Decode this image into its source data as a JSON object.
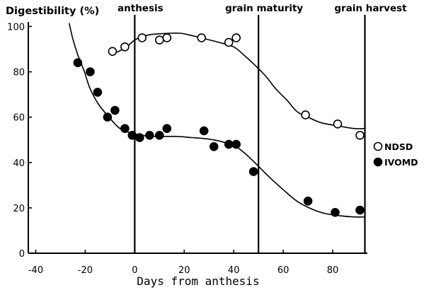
{
  "chart_data": {
    "type": "scatter",
    "ylabel": "Digestibility (%)",
    "xlabel": "Days from anthesis",
    "xlim": [
      -43,
      94
    ],
    "ylim": [
      0,
      102
    ],
    "xticks": [
      -40,
      -20,
      0,
      20,
      40,
      60,
      80
    ],
    "yticks": [
      0,
      20,
      40,
      60,
      80,
      100
    ],
    "grid": false,
    "legend": "right",
    "annotations": [
      {
        "label": "anthesis",
        "x": 0
      },
      {
        "label": "grain maturity",
        "x": 50
      },
      {
        "label": "grain harvest",
        "x": 93
      }
    ],
    "series": [
      {
        "name": "NDSD",
        "color": "#000000",
        "marker_fill": "#ffffff",
        "points": [
          [
            -9,
            89
          ],
          [
            -4,
            91
          ],
          [
            3,
            95
          ],
          [
            10,
            94
          ],
          [
            13,
            95
          ],
          [
            27,
            95
          ],
          [
            38,
            93
          ],
          [
            41,
            95
          ],
          [
            69,
            61
          ],
          [
            82,
            57
          ],
          [
            91,
            52
          ]
        ],
        "fit_curve": [
          [
            -9.5,
            87.5
          ],
          [
            -4,
            90.5
          ],
          [
            0,
            94
          ],
          [
            3,
            95.5
          ],
          [
            7,
            96.5
          ],
          [
            14,
            97
          ],
          [
            18.5,
            97
          ],
          [
            23,
            96
          ],
          [
            28.5,
            94.5
          ],
          [
            34,
            93
          ],
          [
            40,
            91
          ],
          [
            44,
            87.5
          ],
          [
            48.5,
            83
          ],
          [
            53,
            78
          ],
          [
            57,
            72.5
          ],
          [
            61.5,
            67.5
          ],
          [
            65.5,
            62.5
          ],
          [
            70,
            60
          ],
          [
            75.5,
            57.5
          ],
          [
            83,
            56
          ],
          [
            88.5,
            55
          ],
          [
            93,
            55
          ]
        ]
      },
      {
        "name": "IVOMD",
        "color": "#000000",
        "marker_fill": "#000000",
        "points": [
          [
            -23,
            84
          ],
          [
            -18,
            80
          ],
          [
            -15,
            71
          ],
          [
            -11,
            60
          ],
          [
            -8,
            63
          ],
          [
            -4,
            55
          ],
          [
            -1,
            52
          ],
          [
            2,
            51
          ],
          [
            6,
            52
          ],
          [
            10,
            52
          ],
          [
            13,
            55
          ],
          [
            28,
            54
          ],
          [
            32,
            47
          ],
          [
            38,
            48
          ],
          [
            41,
            48
          ],
          [
            48,
            36
          ],
          [
            70,
            23
          ],
          [
            81,
            18
          ],
          [
            91,
            19
          ]
        ],
        "fit_curve": [
          [
            -26.5,
            101.5
          ],
          [
            -25,
            94.5
          ],
          [
            -23,
            87.5
          ],
          [
            -20.5,
            80.5
          ],
          [
            -18,
            72.5
          ],
          [
            -14.5,
            65.5
          ],
          [
            -10,
            59.5
          ],
          [
            -6,
            55
          ],
          [
            -1.5,
            53
          ],
          [
            3,
            52
          ],
          [
            8.5,
            51.5
          ],
          [
            17,
            51.5
          ],
          [
            23,
            51
          ],
          [
            28.5,
            50.5
          ],
          [
            34,
            49.5
          ],
          [
            40,
            47.5
          ],
          [
            44,
            44.5
          ],
          [
            48.5,
            40
          ],
          [
            54,
            34
          ],
          [
            60,
            28
          ],
          [
            65.5,
            23
          ],
          [
            71.5,
            19.5
          ],
          [
            77,
            17.5
          ],
          [
            83,
            16.5
          ],
          [
            88.5,
            16
          ],
          [
            93,
            16
          ]
        ]
      }
    ]
  }
}
